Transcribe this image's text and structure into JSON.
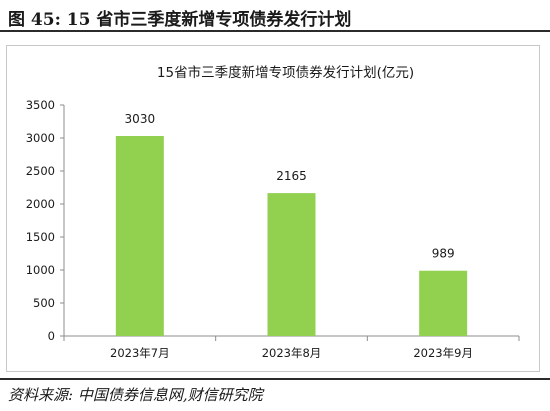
{
  "figure_title": "图 45:  15 省市三季度新增专项债券发行计划",
  "source": "资料来源:  中国债券信息网,财信研究院",
  "chart_data": {
    "type": "bar",
    "title": "15省市三季度新增专项债券发行计划(亿元)",
    "categories": [
      "2023年7月",
      "2023年8月",
      "2023年9月"
    ],
    "values": [
      3030,
      2165,
      989
    ],
    "data_labels": [
      "3030",
      "2165",
      "989"
    ],
    "xlabel": "",
    "ylabel": "",
    "ylim": [
      0,
      3500
    ],
    "yticks": [
      0,
      500,
      1000,
      1500,
      2000,
      2500,
      3000,
      3500
    ],
    "grid": false,
    "legend": "none",
    "bar_color": "#92d050"
  }
}
